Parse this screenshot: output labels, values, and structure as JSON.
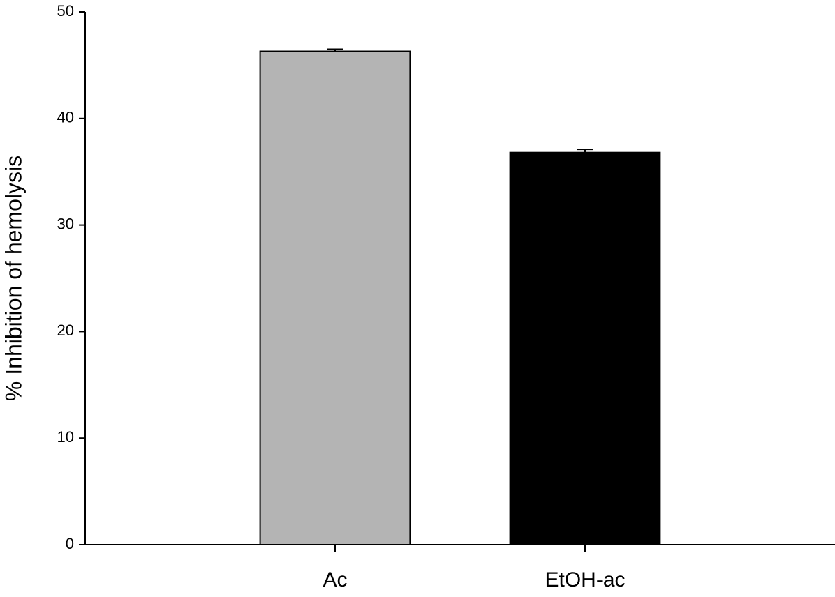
{
  "chart_data": {
    "type": "bar",
    "y_label": "% Inhibition of hemolysis",
    "categories": [
      "Ac",
      "EtOH-ac"
    ],
    "values": [
      46.3,
      36.8
    ],
    "errors": [
      0.2,
      0.3
    ],
    "colors": [
      "#b4b4b4",
      "#000000"
    ],
    "ylim": [
      0,
      50
    ],
    "yticks": [
      0,
      10,
      20,
      30,
      40,
      50
    ]
  }
}
